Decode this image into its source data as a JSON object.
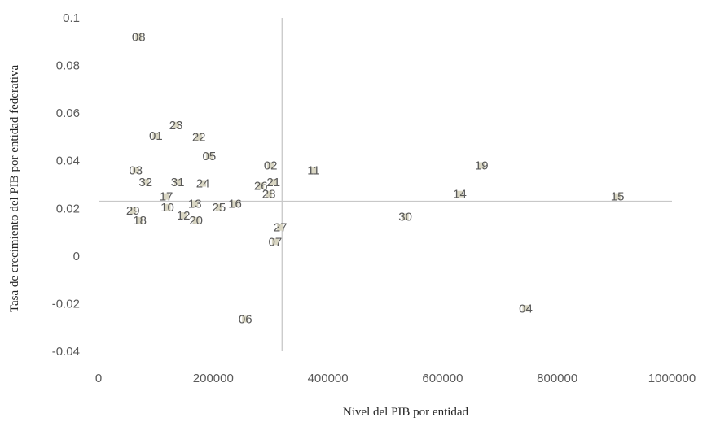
{
  "chart_data": {
    "type": "scatter",
    "title": "",
    "xlabel": "Nivel del PIB por entidad",
    "ylabel": "Tasa de crecimiento del PIB por entidad federativa",
    "xlim": [
      0,
      1000000
    ],
    "ylim": [
      -0.04,
      0.1
    ],
    "x_ticks": [
      0,
      200000,
      400000,
      600000,
      800000,
      1000000
    ],
    "x_tick_labels": [
      "0",
      "200000",
      "400000",
      "600000",
      "800000",
      "1000000"
    ],
    "y_ticks": [
      -0.04,
      -0.02,
      0,
      0.02,
      0.04,
      0.06,
      0.08,
      0.1
    ],
    "y_tick_labels": [
      "-0.04",
      "-0.02",
      "0",
      "0.02",
      "0.04",
      "0.06",
      "0.08",
      "0.1"
    ],
    "reference_lines": {
      "x": 320000,
      "y": 0.023
    },
    "grid": false,
    "marker_color": "#d9d6c3",
    "reference_line_color": "#c8c8c8",
    "points": [
      {
        "label": "08",
        "x": 70000,
        "y": 0.092
      },
      {
        "label": "23",
        "x": 135000,
        "y": 0.055
      },
      {
        "label": "01",
        "x": 100000,
        "y": 0.0505
      },
      {
        "label": "22",
        "x": 175000,
        "y": 0.05
      },
      {
        "label": "05",
        "x": 193000,
        "y": 0.042
      },
      {
        "label": "03",
        "x": 65000,
        "y": 0.036
      },
      {
        "label": "32",
        "x": 82000,
        "y": 0.031
      },
      {
        "label": "31",
        "x": 138000,
        "y": 0.031
      },
      {
        "label": "24",
        "x": 182000,
        "y": 0.0305
      },
      {
        "label": "02",
        "x": 300000,
        "y": 0.038
      },
      {
        "label": "21",
        "x": 305000,
        "y": 0.031
      },
      {
        "label": "26",
        "x": 283000,
        "y": 0.0295
      },
      {
        "label": "28",
        "x": 297000,
        "y": 0.026
      },
      {
        "label": "11",
        "x": 375000,
        "y": 0.036
      },
      {
        "label": "19",
        "x": 668000,
        "y": 0.038
      },
      {
        "label": "14",
        "x": 630000,
        "y": 0.026
      },
      {
        "label": "15",
        "x": 905000,
        "y": 0.025
      },
      {
        "label": "17",
        "x": 118000,
        "y": 0.025
      },
      {
        "label": "13",
        "x": 168000,
        "y": 0.022
      },
      {
        "label": "16",
        "x": 238000,
        "y": 0.022
      },
      {
        "label": "25",
        "x": 210000,
        "y": 0.0205
      },
      {
        "label": "10",
        "x": 120000,
        "y": 0.0205
      },
      {
        "label": "29",
        "x": 60000,
        "y": 0.019
      },
      {
        "label": "12",
        "x": 148000,
        "y": 0.017
      },
      {
        "label": "20",
        "x": 170000,
        "y": 0.015
      },
      {
        "label": "18",
        "x": 72000,
        "y": 0.015
      },
      {
        "label": "27",
        "x": 317000,
        "y": 0.012
      },
      {
        "label": "07",
        "x": 308000,
        "y": 0.006
      },
      {
        "label": "30",
        "x": 535000,
        "y": 0.0165
      },
      {
        "label": "04",
        "x": 745000,
        "y": -0.022
      },
      {
        "label": "06",
        "x": 256000,
        "y": -0.0265
      }
    ]
  }
}
